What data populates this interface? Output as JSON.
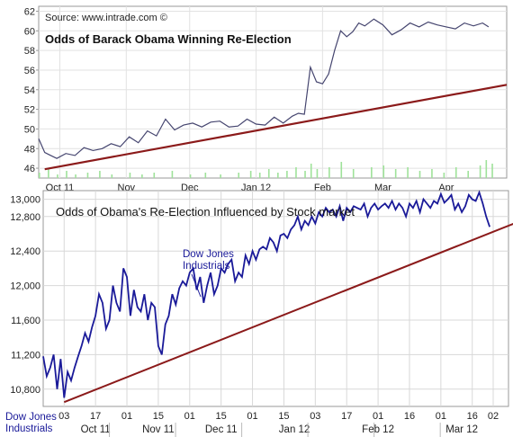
{
  "chart_data": [
    {
      "type": "line",
      "source_text": "Source: www.intrade.com ©",
      "title": "Odds of Barack Obama Winning Re-Election",
      "ylim": [
        45,
        62.5
      ],
      "yticks": [
        46,
        48,
        50,
        52,
        54,
        56,
        58,
        60,
        62
      ],
      "x_range": [
        0,
        155
      ],
      "xticks": [
        {
          "label": "Oct 11",
          "x": 7
        },
        {
          "label": "Nov",
          "x": 29
        },
        {
          "label": "Dec",
          "x": 50
        },
        {
          "label": "Jan 12",
          "x": 72
        },
        {
          "label": "Feb",
          "x": 94
        },
        {
          "label": "Mar",
          "x": 114
        },
        {
          "label": "Apr",
          "x": 135
        }
      ],
      "grid": true,
      "series": [
        {
          "color": "#45456f",
          "x": [
            0,
            2,
            4,
            6,
            9,
            12,
            15,
            18,
            21,
            24,
            27,
            30,
            33,
            36,
            39,
            42,
            45,
            48,
            51,
            54,
            57,
            60,
            63,
            66,
            69,
            72,
            75,
            78,
            81,
            84,
            86,
            88,
            90,
            92,
            94,
            96,
            98,
            100,
            102,
            104,
            106,
            108,
            111,
            114,
            117,
            120,
            123,
            126,
            129,
            132,
            135,
            138,
            141,
            144,
            147,
            149
          ],
          "values": [
            49,
            47.6,
            47.3,
            47,
            47.5,
            47.3,
            48.1,
            47.8,
            48,
            48.5,
            48.2,
            49.2,
            48.6,
            49.8,
            49.3,
            51,
            49.9,
            50.4,
            50.6,
            50.2,
            50.7,
            50.8,
            50.2,
            50.3,
            51,
            50.5,
            50.4,
            51.2,
            50.6,
            51.3,
            51.6,
            51.5,
            56.3,
            54.8,
            54.6,
            55.6,
            58,
            60,
            59.4,
            59.9,
            60.8,
            60.5,
            61.2,
            60.6,
            59.6,
            60.1,
            60.8,
            60.4,
            60.9,
            60.6,
            60.4,
            60.2,
            60.8,
            60.5,
            60.8,
            60.4
          ]
        },
        {
          "color": "#8b1a1a",
          "x": [
            2,
            155
          ],
          "values": [
            45.9,
            54.5
          ]
        }
      ],
      "volume_bars": {
        "color": "#9fe29a",
        "x": [
          0,
          3,
          6,
          9,
          12,
          16,
          20,
          24,
          30,
          34,
          38,
          44,
          50,
          55,
          60,
          66,
          70,
          73,
          76,
          79,
          82,
          85,
          88,
          90,
          92,
          96,
          100,
          104,
          110,
          114,
          118,
          122,
          126,
          130,
          134,
          138,
          142,
          146,
          148,
          150
        ],
        "heights": [
          0.3,
          0.5,
          0.2,
          0.4,
          0.2,
          0.3,
          0.4,
          0.2,
          0.3,
          0.2,
          0.3,
          0.4,
          0.2,
          0.3,
          0.2,
          0.3,
          0.4,
          0.3,
          0.5,
          0.3,
          0.4,
          0.6,
          0.4,
          0.8,
          0.5,
          0.6,
          0.9,
          0.5,
          0.6,
          0.7,
          0.5,
          0.6,
          0.4,
          0.5,
          0.3,
          0.6,
          0.4,
          0.7,
          1.0,
          0.8
        ]
      }
    },
    {
      "type": "line",
      "title": "Odds of Obama's Re-Election Influenced by Stock market",
      "ylim": [
        10600,
        13100
      ],
      "yticks": [
        10800,
        11200,
        11600,
        12000,
        12400,
        12800,
        13000
      ],
      "ytick_labels": [
        "10,800",
        "11,200",
        "11,600",
        "12,000",
        "12,400",
        "12,800",
        "13,000"
      ],
      "x_range": [
        0,
        129
      ],
      "xlabel": [
        "Dow Jones",
        "Industrials"
      ],
      "xticks_top": [
        {
          "label": "03",
          "x": 6
        },
        {
          "label": "17",
          "x": 15
        },
        {
          "label": "01",
          "x": 24
        },
        {
          "label": "15",
          "x": 33
        },
        {
          "label": "01",
          "x": 42
        },
        {
          "label": "15",
          "x": 51
        },
        {
          "label": "01",
          "x": 60
        },
        {
          "label": "15",
          "x": 69
        },
        {
          "label": "03",
          "x": 78
        },
        {
          "label": "17",
          "x": 87
        },
        {
          "label": "01",
          "x": 96
        },
        {
          "label": "16",
          "x": 105
        },
        {
          "label": "01",
          "x": 114
        },
        {
          "label": "16",
          "x": 123
        },
        {
          "label": "02",
          "x": 129
        }
      ],
      "xticks_months": [
        {
          "label": "Oct 11",
          "x": 15
        },
        {
          "label": "Nov 11",
          "x": 33
        },
        {
          "label": "Dec 11",
          "x": 51
        },
        {
          "label": "Jan 12",
          "x": 72
        },
        {
          "label": "Feb 12",
          "x": 96
        },
        {
          "label": "Mar 12",
          "x": 120
        }
      ],
      "annotation": [
        "Dow Jones",
        "Industrials"
      ],
      "grid": true,
      "series": [
        {
          "color": "#1a1a99",
          "x": [
            0,
            1,
            2,
            3,
            4,
            5,
            6,
            7,
            8,
            9,
            10,
            11,
            12,
            13,
            14,
            15,
            16,
            17,
            18,
            19,
            20,
            21,
            22,
            23,
            24,
            25,
            26,
            27,
            28,
            29,
            30,
            31,
            32,
            33,
            34,
            35,
            36,
            37,
            38,
            39,
            40,
            41,
            42,
            43,
            44,
            45,
            46,
            47,
            48,
            49,
            50,
            51,
            52,
            53,
            54,
            55,
            56,
            57,
            58,
            59,
            60,
            61,
            62,
            63,
            64,
            65,
            66,
            67,
            68,
            69,
            70,
            71,
            72,
            73,
            74,
            75,
            76,
            77,
            78,
            79,
            80,
            81,
            82,
            83,
            84,
            85,
            86,
            87,
            88,
            89,
            90,
            91,
            92,
            93,
            94,
            95,
            96,
            97,
            98,
            99,
            100,
            101,
            102,
            103,
            104,
            105,
            106,
            107,
            108,
            109,
            110,
            111,
            112,
            113,
            114,
            115,
            116,
            117,
            118,
            119,
            120,
            121,
            122,
            123,
            124,
            125,
            126,
            127,
            128
          ],
          "values": [
            11180,
            10950,
            11050,
            11200,
            10800,
            11150,
            10700,
            11000,
            10900,
            11050,
            11180,
            11300,
            11450,
            11350,
            11520,
            11650,
            11900,
            11800,
            11500,
            11600,
            12000,
            11800,
            11700,
            12200,
            12100,
            11650,
            11950,
            11750,
            11700,
            11900,
            11600,
            11800,
            11750,
            11300,
            11200,
            11550,
            11650,
            11900,
            11780,
            11970,
            12050,
            12000,
            12150,
            12200,
            11950,
            12100,
            11800,
            12000,
            12150,
            11900,
            12000,
            12200,
            12150,
            12250,
            12300,
            12050,
            12150,
            12100,
            12350,
            12250,
            12400,
            12300,
            12420,
            12450,
            12420,
            12550,
            12500,
            12400,
            12580,
            12600,
            12550,
            12650,
            12700,
            12800,
            12650,
            12750,
            12700,
            12800,
            12720,
            12850,
            12800,
            12900,
            12850,
            12880,
            12800,
            12920,
            12750,
            12900,
            12850,
            12920,
            12900,
            12880,
            12950,
            12800,
            12900,
            12950,
            12880,
            12920,
            12950,
            12900,
            12980,
            12880,
            12950,
            12900,
            12800,
            12950,
            12900,
            12980,
            12850,
            13000,
            12950,
            12900,
            12980,
            12950,
            13060,
            12960,
            13000,
            13050,
            12880,
            12950,
            12850,
            12920,
            13050,
            13000,
            12980,
            13080,
            12950,
            12800,
            12680
          ]
        },
        {
          "color": "#8b1a1a",
          "x": [
            6,
            135
          ],
          "values": [
            10650,
            12720
          ]
        }
      ]
    }
  ]
}
